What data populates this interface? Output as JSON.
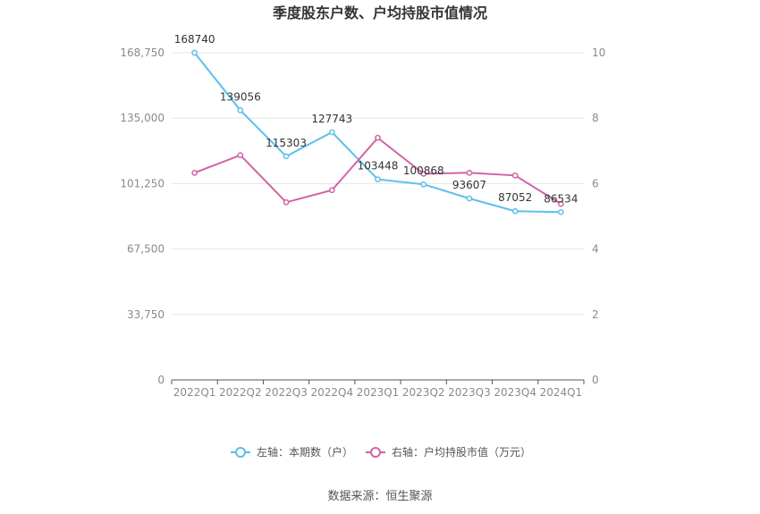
{
  "chart_data": {
    "type": "line",
    "title": "季度股东户数、户均持股市值情况",
    "categories": [
      "2022Q1",
      "2022Q2",
      "2022Q3",
      "2022Q4",
      "2023Q1",
      "2023Q2",
      "2023Q3",
      "2023Q4",
      "2024Q1"
    ],
    "left_axis": {
      "ylim": [
        0,
        168750
      ],
      "ticks": [
        "0",
        "33,750",
        "67,500",
        "101,250",
        "135,000",
        "168,750"
      ]
    },
    "right_axis": {
      "ylim": [
        0,
        10
      ],
      "ticks": [
        "0",
        "2",
        "4",
        "6",
        "8",
        "10"
      ]
    },
    "series": [
      {
        "name": "左轴：本期数（户）",
        "axis": "left",
        "color": "#5bc0eb",
        "values": [
          168740,
          139056,
          115303,
          127743,
          103448,
          100868,
          93607,
          87052,
          86534
        ],
        "labels": [
          "168740",
          "139056",
          "115303",
          "127743",
          "103448",
          "100868",
          "93607",
          "87052",
          "86534"
        ]
      },
      {
        "name": "右轴：户均持股市值（万元）",
        "axis": "right",
        "color": "#d063a6",
        "values": [
          6.33,
          6.87,
          5.43,
          5.8,
          7.4,
          6.3,
          6.33,
          6.25,
          5.38
        ]
      }
    ],
    "grid": true,
    "legend_position": "bottom"
  },
  "source": "数据来源：恒生聚源"
}
